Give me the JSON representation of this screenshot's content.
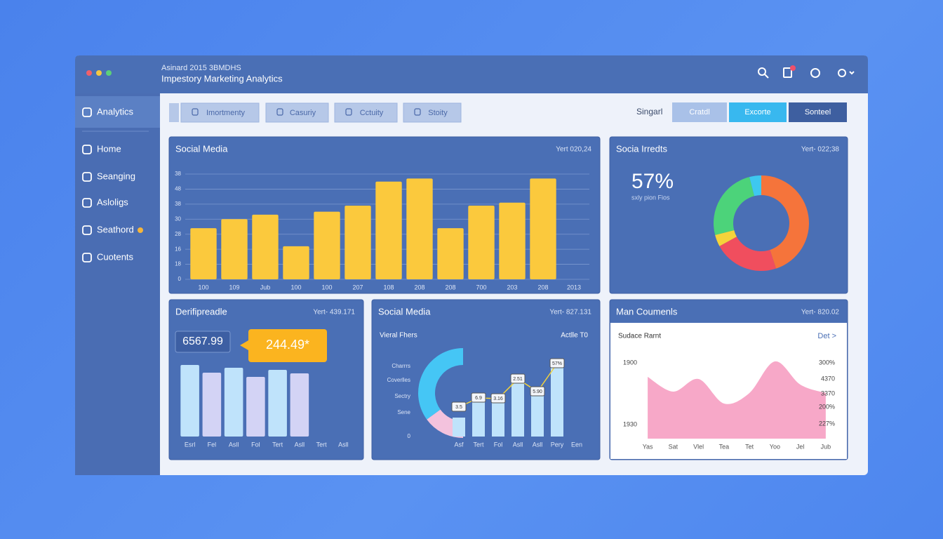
{
  "header": {
    "subtitle": "Asinard 2015 3BMDHS",
    "title": "Impestory Marketing Analytics"
  },
  "sidebar": [
    "Analytics",
    "Home",
    "Seanging",
    "Asloligs",
    "Seathord",
    "Cuotents"
  ],
  "tabs": [
    "Imortmenty",
    "Casuriy",
    "Cctuity",
    "Stoity"
  ],
  "toolbar": {
    "label": "Singarl",
    "buttons": [
      "Cratdl",
      "Excorte",
      "Sonteel"
    ]
  },
  "chart_data": [
    {
      "type": "bar",
      "title": "Social Media",
      "subtitle": "Yert 020,24",
      "categories": [
        "100",
        "109",
        "Jub",
        "100",
        "100",
        "207",
        "108",
        "208",
        "208",
        "700",
        "203",
        "208",
        "2013"
      ],
      "values": [
        34,
        40,
        43,
        22,
        45,
        49,
        65,
        67,
        34,
        49,
        51,
        67,
        null
      ],
      "color": "#fbc93d",
      "ylim": [
        0,
        70
      ],
      "yticks": [
        0,
        {
          "value": 10,
          "label": "18"
        },
        {
          "value": 20,
          "label": "16"
        },
        {
          "value": 30,
          "label": "28"
        },
        {
          "value": 40,
          "label": "30"
        },
        {
          "value": 50,
          "label": "38"
        },
        {
          "value": 60,
          "label": "48"
        },
        {
          "value": 70,
          "label": "38"
        }
      ],
      "grid": true
    },
    {
      "type": "donut",
      "title": "Socia Irredts",
      "subtitle": "Yert- 022;38",
      "headline": "57%",
      "headline_caption": "sxly pion Fios",
      "values": [
        45,
        22,
        4,
        25,
        4
      ],
      "colors": [
        "#f5743b",
        "#f04e5e",
        "#f5d33a",
        "#4cd37a",
        "#3ec8f0"
      ]
    },
    {
      "type": "bar",
      "title": "Derifipreadle",
      "subtitle": "Yert- 439.171",
      "stat": "6567.99",
      "callout": "244.49*",
      "categories": [
        "Esrl",
        "Fel",
        "Asll",
        "Fol",
        "Tert",
        "Asll",
        "Tert",
        "Asll"
      ],
      "values": [
        102,
        91,
        98,
        85,
        95,
        90,
        null,
        null
      ],
      "colors": [
        "#bfe3fb",
        "#d3d3f5",
        "#bfe3fb",
        "#d3d3f5",
        "#bfe3fb",
        "#d3d3f5",
        "#bfe3fb",
        "#d3d3f5"
      ],
      "ylim": [
        0,
        120
      ]
    },
    {
      "type": "combo",
      "title": "Social Media",
      "subtitle": "Yert- 827.131",
      "legend_left": "Vieral Fhers",
      "legend_right": "Actlle T0",
      "y_labels": [
        "Charrrs",
        "Coverlles",
        "Sectry",
        "Sene",
        "0"
      ],
      "categories": [
        "Asf",
        "Tert",
        "Fol",
        "Asll",
        "Asll",
        "Pery",
        "Een"
      ],
      "values": [
        27,
        50,
        50,
        81,
        60,
        100,
        null
      ],
      "color": "#bfe3fb",
      "line_values": [
        42,
        55,
        54,
        82,
        64,
        104,
        null
      ],
      "line_value_labels": [
        "3.5",
        "6.9",
        "3.16",
        "2.51",
        "5.90",
        "57%",
        null
      ],
      "line_color": "#f5d33a",
      "ring": [
        30,
        70
      ],
      "ring_colors": [
        "#f3c2dd",
        "#45c6f5"
      ],
      "ylim": [
        0,
        120
      ]
    },
    {
      "type": "area",
      "title": "Man Coumenls",
      "subtitle": "Yert- 820.02",
      "panel_title": "Sudace Rarnt",
      "link": "Det >",
      "left_labels": [
        "1900",
        "1930"
      ],
      "right_labels": [
        "300%",
        "4370",
        "3370",
        "200%",
        "227%"
      ],
      "categories": [
        "Yas",
        "Sat",
        "Vlel",
        "Tea",
        "Tet",
        "Yoo",
        "Jel",
        "Jub"
      ],
      "values": [
        88,
        67,
        85,
        50,
        65,
        110,
        77,
        65
      ],
      "color": "#f7a8c8",
      "ylim": [
        0,
        120
      ]
    }
  ]
}
